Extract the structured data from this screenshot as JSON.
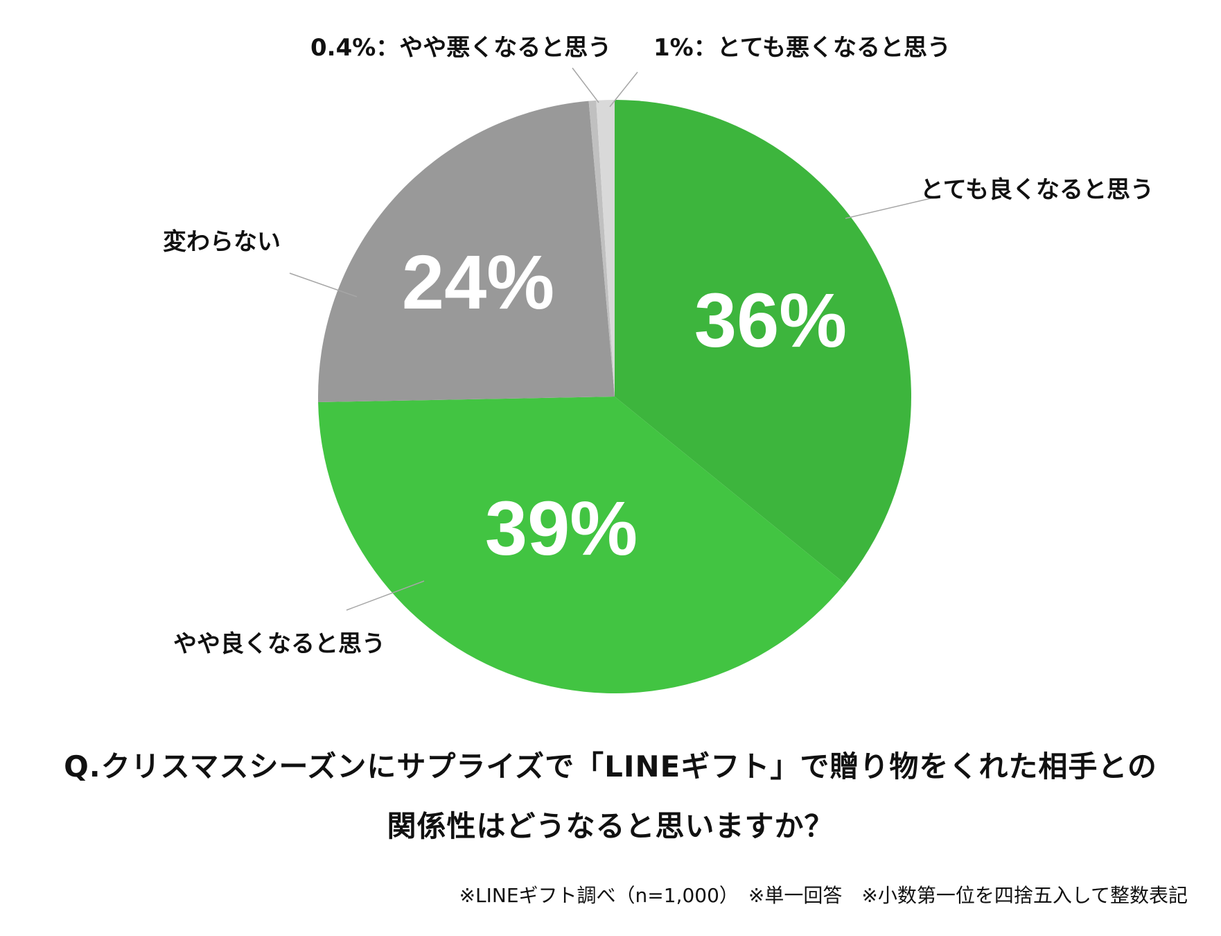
{
  "chart_data": {
    "type": "pie",
    "slices": [
      {
        "label": "とても良くなると思う",
        "value": 36,
        "value_label": "36%",
        "color": "#3db53d"
      },
      {
        "label": "やや良くなると思う",
        "value": 39,
        "value_label": "39%",
        "color": "#42c442"
      },
      {
        "label": "変わらない",
        "value": 24,
        "value_label": "24%",
        "color": "#999999"
      },
      {
        "label": "0.4%：やや悪くなると思う",
        "value": 0.4,
        "value_label": "",
        "color": "#c0c0c0"
      },
      {
        "label": "1%：とても悪くなると思う",
        "value": 1,
        "value_label": "",
        "color": "#d9d9d9"
      }
    ],
    "start_angle": "12 o'clock",
    "direction": "clockwise"
  },
  "question": {
    "line1": "Q.クリスマスシーズンにサプライズで「LINEギフト」で贈り物をくれた相手との",
    "line2": "関係性はどうなると思いますか？"
  },
  "note": "※LINEギフト調べ（n=1,000）　※単一回答　※小数第一位を四捨五入して整数表記"
}
